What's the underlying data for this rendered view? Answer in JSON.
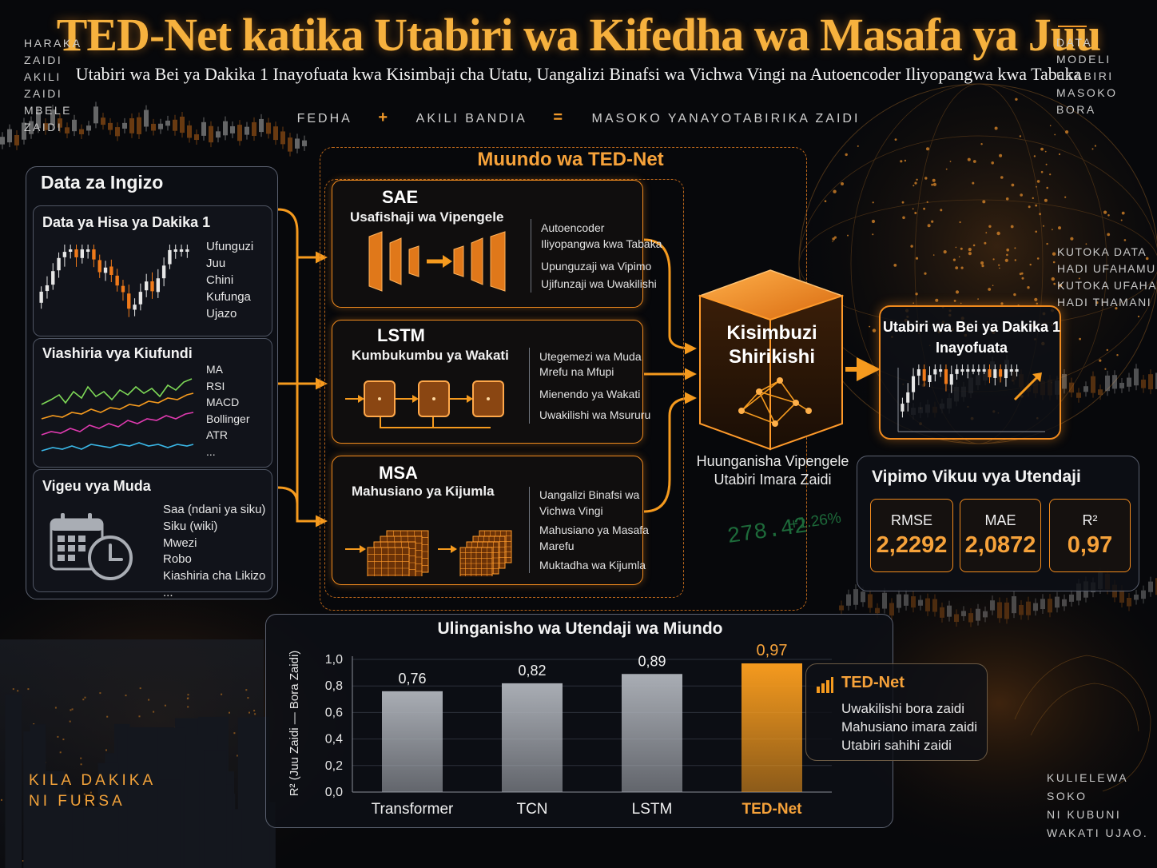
{
  "title": "TED-Net katika Utabiri wa Kifedha wa Masafa ya Juu",
  "subtitle": "Utabiri wa Bei ya Dakika 1 Inayofuata kwa Kisimbaji cha Utatu, Uangalizi Binafsi wa Vichwa Vingi na Autoencoder Iliyopangwa kwa Tabaka",
  "tagline": {
    "a": "FEDHA",
    "plus": "+",
    "b": "AKILI BANDIA",
    "eq": "=",
    "c": "MASOKO YANAYOTABIRIKA ZAIDI"
  },
  "side_left_top": [
    "HARAKA",
    "ZAIDI",
    "AKILI",
    "ZAIDI",
    "MBELE",
    "ZAIDI"
  ],
  "side_right_top": [
    "DATA",
    "MODELI",
    "UTABIRI",
    "MASOKO",
    "BORA"
  ],
  "side_right_mid": [
    "KUTOKA DATA",
    "HADI UFAHAMU",
    "KUTOKA UFAHAMU",
    "HADI THAMANI"
  ],
  "side_left_bottom": [
    "KILA DAKIKA",
    "NI FURSA"
  ],
  "side_right_bottom": [
    "KULIELEWA",
    "SOKO",
    "NI KUBUNI",
    "WAKATI UJAO."
  ],
  "input": {
    "title": "Data za Ingizo",
    "stock": {
      "title": "Data ya Hisa ya Dakika 1",
      "items": [
        "Ufunguzi",
        "Juu",
        "Chini",
        "Kufunga",
        "Ujazo"
      ]
    },
    "tech": {
      "title": "Viashiria vya Kiufundi",
      "items": [
        "MA",
        "RSI",
        "MACD",
        "Bollinger",
        "ATR",
        "..."
      ]
    },
    "time": {
      "title": "Vigeu vya Muda",
      "items": [
        "Saa (ndani ya siku)",
        "Siku (wiki)",
        "Mwezi",
        "Robo",
        "Kiashiria cha Likizo",
        "..."
      ]
    }
  },
  "arch": {
    "title": "Muundo wa TED-Net",
    "sae": {
      "name": "SAE",
      "sub": "Usafishaji wa Vipengele",
      "desc": [
        "Autoencoder",
        "Iliyopangwa kwa Tabaka",
        "Upunguzaji wa Vipimo",
        "Ujifunzaji wa Uwakilishi"
      ]
    },
    "lstm": {
      "name": "LSTM",
      "sub": "Kumbukumbu ya Wakati",
      "desc": [
        "Utegemezi wa Muda",
        "Mrefu na Mfupi",
        "Mienendo ya Wakati",
        "Uwakilishi wa Msururu"
      ]
    },
    "msa": {
      "name": "MSA",
      "sub": "Mahusiano ya Kijumla",
      "desc": [
        "Uangalizi Binafsi wa",
        "Vichwa Vingi",
        "Mahusiano ya Masafa",
        "Marefu",
        "Muktadha wa Kijumla"
      ]
    }
  },
  "fusion": {
    "title_1": "Kisimbuzi",
    "title_2": "Shirikishi",
    "caption_1": "Huunganisha Vipengele",
    "caption_2": "Utabiri Imara Zaidi"
  },
  "ticker": {
    "price": "278.42",
    "change": "+1.26%"
  },
  "prediction": {
    "title_1": "Utabiri wa Bei ya Dakika 1",
    "title_2": "Inayofuata"
  },
  "metrics": {
    "title": "Vipimo Vikuu vya Utendaji",
    "items": [
      {
        "name": "RMSE",
        "value": "2,2292"
      },
      {
        "name": "MAE",
        "value": "2,0872"
      },
      {
        "name": "R²",
        "value": "0,97"
      }
    ]
  },
  "chart_data": {
    "type": "bar",
    "title": "Ulinganisho wa Utendaji wa Miundo",
    "ylabel": "R² (Juu Zaidi — Bora Zaidi)",
    "ylim": [
      0,
      1
    ],
    "yticks": [
      "0,0",
      "0,2",
      "0,4",
      "0,6",
      "0,8",
      "1,0"
    ],
    "categories": [
      "Transformer",
      "TCN",
      "LSTM",
      "TED-Net"
    ],
    "values": [
      0.76,
      0.82,
      0.89,
      0.97
    ],
    "value_labels": [
      "0,76",
      "0,82",
      "0,89",
      "0,97"
    ],
    "colors": [
      "#a9adb4",
      "#a9adb4",
      "#a9adb4",
      "#f59a1e"
    ],
    "highlight_color": "#f59a1e"
  },
  "legend_box": {
    "title": "TED-Net",
    "items": [
      "Uwakilishi bora zaidi",
      "Mahusiano imara zaidi",
      "Utabiri sahihi zaidi"
    ]
  }
}
